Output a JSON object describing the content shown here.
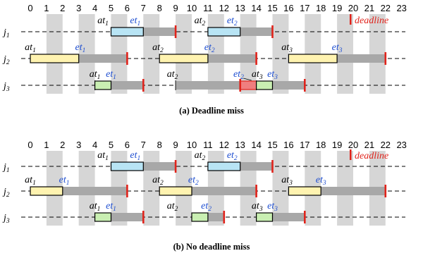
{
  "colors": {
    "stripe": "#d6d6d6",
    "blocked": "#a8a8a8",
    "deadline": "#e0231b",
    "et_label": "#1f4fd1",
    "j1_bar": "#b8e4f4",
    "j2_bar": "#fff3b0",
    "j3_bar": "#c9efb2",
    "miss_bar": "#f07e7e"
  },
  "legend": {
    "deadline": "deadline"
  },
  "panels": [
    {
      "caption": "(a) Deadline miss",
      "ticks": [
        0,
        1,
        2,
        3,
        4,
        5,
        6,
        7,
        8,
        9,
        10,
        11,
        12,
        13,
        14,
        15,
        16,
        17,
        18,
        19,
        20,
        21,
        22,
        23
      ],
      "rows": [
        {
          "job_label": "j",
          "job_index": "1",
          "blocked": [
            [
              7,
              9
            ],
            [
              13,
              15
            ]
          ],
          "bars": [
            {
              "from": 5,
              "to": 7,
              "kind": "j1"
            },
            {
              "from": 11,
              "to": 13,
              "kind": "j1"
            }
          ],
          "deadlines": [
            9,
            15
          ],
          "labels": [
            {
              "kind": "at",
              "sub": "1",
              "t": 4.5
            },
            {
              "kind": "et",
              "sub": "1",
              "t": 6.5
            },
            {
              "kind": "at",
              "sub": "2",
              "t": 10.5
            },
            {
              "kind": "et",
              "sub": "2",
              "t": 12.5
            }
          ]
        },
        {
          "job_label": "j",
          "job_index": "2",
          "blocked": [
            [
              3,
              6
            ],
            [
              11,
              14
            ],
            [
              19,
              22
            ]
          ],
          "bars": [
            {
              "from": 0,
              "to": 3,
              "kind": "j2"
            },
            {
              "from": 8,
              "to": 11,
              "kind": "j2"
            },
            {
              "from": 16,
              "to": 19,
              "kind": "j2"
            }
          ],
          "deadlines": [
            6,
            14,
            22
          ],
          "labels": [
            {
              "kind": "at",
              "sub": "1",
              "t": 0
            },
            {
              "kind": "et",
              "sub": "1",
              "t": 3.1
            },
            {
              "kind": "at",
              "sub": "2",
              "t": 7.9
            },
            {
              "kind": "et",
              "sub": "2",
              "t": 11.1
            },
            {
              "kind": "at",
              "sub": "3",
              "t": 15.9
            },
            {
              "kind": "et",
              "sub": "3",
              "t": 19
            }
          ]
        },
        {
          "job_label": "j",
          "job_index": "3",
          "blocked": [
            [
              5,
              7
            ],
            [
              9,
              13
            ],
            [
              15,
              17
            ]
          ],
          "bars": [
            {
              "from": 4,
              "to": 5,
              "kind": "j3"
            },
            {
              "from": 13,
              "to": 14,
              "kind": "miss"
            },
            {
              "from": 14,
              "to": 15,
              "kind": "j3"
            }
          ],
          "deadlines": [
            7,
            13,
            17
          ],
          "starts": [
            4,
            9,
            14
          ],
          "labels": [
            {
              "kind": "at",
              "sub": "1",
              "t": 4.0
            },
            {
              "kind": "et",
              "sub": "1",
              "t": 5.0
            },
            {
              "kind": "at",
              "sub": "2",
              "t": 8.8
            },
            {
              "kind": "et",
              "sub": "2",
              "t": 12.9
            },
            {
              "kind": "at",
              "sub": "3",
              "t": 14.05
            },
            {
              "kind": "et",
              "sub": "3",
              "t": 15.0
            }
          ]
        }
      ]
    },
    {
      "caption": "(b) No deadline miss",
      "ticks": [
        0,
        1,
        2,
        3,
        4,
        5,
        6,
        7,
        8,
        9,
        10,
        11,
        12,
        13,
        14,
        15,
        16,
        17,
        18,
        19,
        20,
        21,
        22,
        23
      ],
      "rows": [
        {
          "job_label": "j",
          "job_index": "1",
          "blocked": [
            [
              7,
              9
            ],
            [
              13,
              15
            ]
          ],
          "bars": [
            {
              "from": 5,
              "to": 7,
              "kind": "j1"
            },
            {
              "from": 11,
              "to": 13,
              "kind": "j1"
            }
          ],
          "deadlines": [
            9,
            15
          ],
          "labels": [
            {
              "kind": "at",
              "sub": "1",
              "t": 4.5
            },
            {
              "kind": "et",
              "sub": "1",
              "t": 6.5
            },
            {
              "kind": "at",
              "sub": "2",
              "t": 10.5
            },
            {
              "kind": "et",
              "sub": "2",
              "t": 12.5
            }
          ]
        },
        {
          "job_label": "j",
          "job_index": "2",
          "blocked": [
            [
              2,
              6
            ],
            [
              10,
              14
            ],
            [
              18,
              22
            ]
          ],
          "bars": [
            {
              "from": 0,
              "to": 2,
              "kind": "j2"
            },
            {
              "from": 8,
              "to": 10,
              "kind": "j2"
            },
            {
              "from": 16,
              "to": 18,
              "kind": "j2"
            }
          ],
          "deadlines": [
            6,
            14,
            22
          ],
          "labels": [
            {
              "kind": "at",
              "sub": "1",
              "t": 0
            },
            {
              "kind": "et",
              "sub": "1",
              "t": 2.1
            },
            {
              "kind": "at",
              "sub": "2",
              "t": 7.9
            },
            {
              "kind": "et",
              "sub": "2",
              "t": 10.1
            },
            {
              "kind": "at",
              "sub": "3",
              "t": 15.9
            },
            {
              "kind": "et",
              "sub": "3",
              "t": 18
            }
          ]
        },
        {
          "job_label": "j",
          "job_index": "3",
          "blocked": [
            [
              5,
              7
            ],
            [
              11,
              12
            ],
            [
              15,
              17
            ]
          ],
          "bars": [
            {
              "from": 4,
              "to": 5,
              "kind": "j3"
            },
            {
              "from": 10,
              "to": 11,
              "kind": "j3"
            },
            {
              "from": 14,
              "to": 15,
              "kind": "j3"
            }
          ],
          "deadlines": [
            7,
            12,
            17
          ],
          "labels": [
            {
              "kind": "at",
              "sub": "1",
              "t": 4.0
            },
            {
              "kind": "et",
              "sub": "1",
              "t": 5.0
            },
            {
              "kind": "at",
              "sub": "2",
              "t": 8.8
            },
            {
              "kind": "et",
              "sub": "2",
              "t": 10.9
            },
            {
              "kind": "at",
              "sub": "3",
              "t": 14.05
            },
            {
              "kind": "et",
              "sub": "3",
              "t": 15.0
            }
          ]
        }
      ]
    }
  ]
}
